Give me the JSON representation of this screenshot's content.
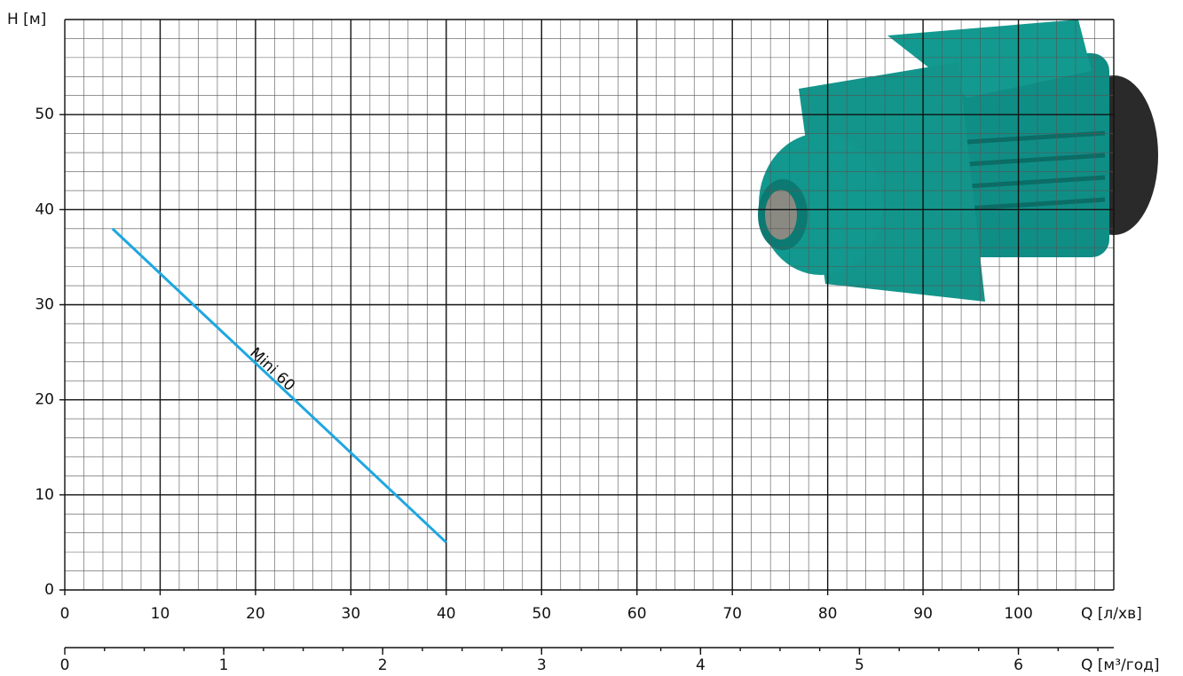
{
  "chart_data": {
    "type": "line",
    "y_label": "H [м]",
    "x_label": "Q [л/хв]",
    "x2_label": "Q [м³/год]",
    "xlim": [
      0,
      110
    ],
    "xticks": [
      0,
      10,
      20,
      30,
      40,
      50,
      60,
      70,
      80,
      90,
      100
    ],
    "ylim": [
      0,
      60
    ],
    "yticks": [
      0,
      10,
      20,
      30,
      40,
      50
    ],
    "x2lim": [
      0,
      6.6
    ],
    "x2ticks": [
      0,
      1,
      2,
      3,
      4,
      5,
      6
    ],
    "grid": true,
    "x": [
      5,
      40
    ],
    "series": [
      {
        "name": "Mini 60",
        "color": "#1ea7e1",
        "values": [
          38,
          5
        ]
      }
    ]
  }
}
